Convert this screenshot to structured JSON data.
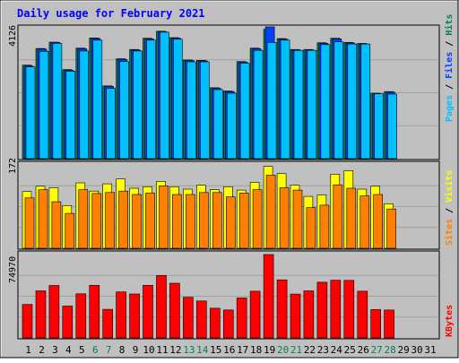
{
  "title": "Daily usage for February 2021",
  "colors": {
    "frame": "#c0c0c0",
    "title": "#0000ff",
    "hits": "#00805c",
    "files": "#0040ff",
    "pages": "#00c0ff",
    "visits": "#ffff00",
    "sites": "#ff8000",
    "kbytes": "#ff0000",
    "weekday_label": "#000000",
    "weekend_label": "#00805c"
  },
  "chart_data": [
    {
      "type": "bar",
      "panel": "hits-files-pages",
      "y_max_label": "4126",
      "right_label": {
        "pages": "Pages",
        "files": "Files",
        "hits": "Hits",
        "sep": " / "
      },
      "ylim": [
        0,
        4126
      ],
      "categories": [
        "1",
        "2",
        "3",
        "4",
        "5",
        "6",
        "7",
        "8",
        "9",
        "10",
        "11",
        "12",
        "13",
        "14",
        "15",
        "16",
        "17",
        "18",
        "19",
        "20",
        "21",
        "22",
        "23",
        "24",
        "25",
        "26",
        "27",
        "28",
        "29",
        "30",
        "31"
      ],
      "series": [
        {
          "name": "Hits",
          "values": [
            2930,
            3450,
            3650,
            2790,
            3460,
            3780,
            2280,
            3130,
            3420,
            3770,
            3990,
            3790,
            3090,
            3080,
            2220,
            2120,
            3040,
            3460,
            4050,
            3760,
            3420,
            3420,
            3630,
            3770,
            3640,
            3610,
            2050,
            2100,
            null,
            null,
            null
          ]
        },
        {
          "name": "Files",
          "values": [
            2900,
            3430,
            3640,
            2770,
            3440,
            3760,
            2260,
            3110,
            3400,
            3750,
            3970,
            3770,
            3070,
            3060,
            2200,
            2100,
            3020,
            3440,
            4126,
            3740,
            3400,
            3400,
            3610,
            3750,
            3620,
            3590,
            2030,
            2080,
            null,
            null,
            null
          ]
        },
        {
          "name": "Pages",
          "values": [
            2870,
            3360,
            3610,
            2740,
            3370,
            3710,
            2200,
            3040,
            3370,
            3710,
            3960,
            3740,
            3030,
            3030,
            2160,
            2050,
            2990,
            3390,
            3640,
            3710,
            3390,
            3390,
            3570,
            3660,
            3590,
            3590,
            2030,
            2020,
            null,
            null,
            null
          ]
        }
      ]
    },
    {
      "type": "bar",
      "panel": "visits-sites",
      "y_max_label": "172",
      "right_label": {
        "sites": "Sites",
        "visits": "Visits",
        "sep": " / "
      },
      "ylim": [
        0,
        172
      ],
      "categories": [
        "1",
        "2",
        "3",
        "4",
        "5",
        "6",
        "7",
        "8",
        "9",
        "10",
        "11",
        "12",
        "13",
        "14",
        "15",
        "16",
        "17",
        "18",
        "19",
        "20",
        "21",
        "22",
        "23",
        "24",
        "25",
        "26",
        "27",
        "28",
        "29",
        "30",
        "31"
      ],
      "series": [
        {
          "name": "Visits",
          "values": [
            117,
            128,
            125,
            88,
            135,
            118,
            133,
            143,
            124,
            127,
            138,
            127,
            122,
            130,
            121,
            127,
            120,
            136,
            169,
            154,
            130,
            107,
            110,
            153,
            160,
            122,
            128,
            92,
            null,
            null,
            null
          ]
        },
        {
          "name": "Sites",
          "values": [
            104,
            121,
            96,
            72,
            121,
            113,
            115,
            118,
            111,
            114,
            129,
            111,
            111,
            115,
            115,
            106,
            114,
            121,
            151,
            125,
            120,
            84,
            89,
            131,
            124,
            108,
            111,
            81,
            null,
            null,
            null
          ]
        }
      ]
    },
    {
      "type": "bar",
      "panel": "kbytes",
      "y_max_label": "74970",
      "right_label": {
        "kbytes": "KBytes"
      },
      "ylim": [
        0,
        74970
      ],
      "categories": [
        "1",
        "2",
        "3",
        "4",
        "5",
        "6",
        "7",
        "8",
        "9",
        "10",
        "11",
        "12",
        "13",
        "14",
        "15",
        "16",
        "17",
        "18",
        "19",
        "20",
        "21",
        "22",
        "23",
        "24",
        "25",
        "26",
        "27",
        "28",
        "29",
        "30",
        "31"
      ],
      "series": [
        {
          "name": "KBytes",
          "values": [
            30030,
            42300,
            47150,
            28580,
            39670,
            47300,
            25740,
            41360,
            39500,
            47330,
            56120,
            49180,
            36480,
            33240,
            26670,
            25170,
            35990,
            41980,
            74970,
            52210,
            39460,
            42300,
            50100,
            51880,
            51740,
            41960,
            25460,
            25100,
            null,
            null,
            null
          ]
        }
      ]
    }
  ],
  "x_axis": {
    "days": [
      "1",
      "2",
      "3",
      "4",
      "5",
      "6",
      "7",
      "8",
      "9",
      "10",
      "11",
      "12",
      "13",
      "14",
      "15",
      "16",
      "17",
      "18",
      "19",
      "20",
      "21",
      "22",
      "23",
      "24",
      "25",
      "26",
      "27",
      "28",
      "29",
      "30",
      "31"
    ],
    "weekend": [
      false,
      false,
      false,
      false,
      false,
      true,
      true,
      false,
      false,
      false,
      false,
      false,
      true,
      true,
      false,
      false,
      false,
      false,
      false,
      true,
      true,
      false,
      false,
      false,
      false,
      false,
      true,
      true,
      false,
      false,
      false
    ]
  }
}
